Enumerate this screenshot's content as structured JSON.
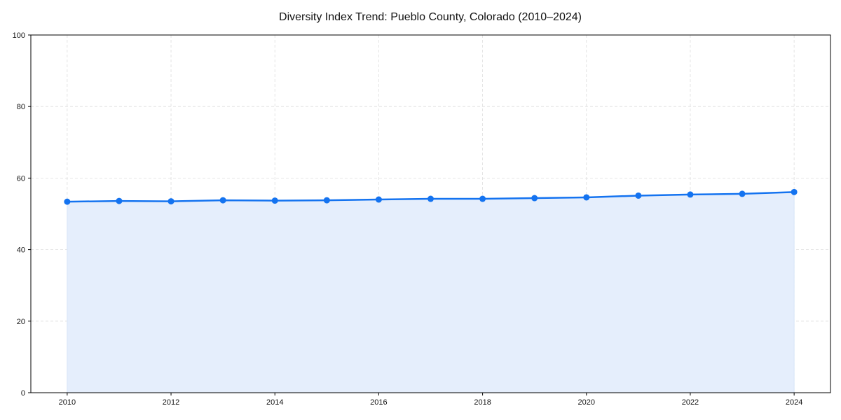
{
  "chart_data": {
    "type": "line",
    "title": "Diversity Index Trend: Pueblo County, Colorado (2010–2024)",
    "xlabel": "",
    "ylabel": "",
    "x": [
      2010,
      2011,
      2012,
      2013,
      2014,
      2015,
      2016,
      2017,
      2018,
      2019,
      2020,
      2021,
      2022,
      2023,
      2024
    ],
    "series": [
      {
        "name": "Diversity Index",
        "values": [
          53.4,
          53.6,
          53.5,
          53.8,
          53.7,
          53.8,
          54.0,
          54.2,
          54.2,
          54.4,
          54.6,
          55.1,
          55.4,
          55.6,
          56.1
        ],
        "color": "#1473f0",
        "fill": "#e5eefc"
      }
    ],
    "xlim": [
      2009.3,
      2024.7
    ],
    "ylim": [
      0,
      100
    ],
    "xticks": [
      "2010",
      "2012",
      "2014",
      "2016",
      "2018",
      "2020",
      "2022",
      "2024"
    ],
    "yticks": [
      "0",
      "20",
      "40",
      "60",
      "80",
      "100"
    ],
    "grid": true,
    "legend": "none"
  }
}
